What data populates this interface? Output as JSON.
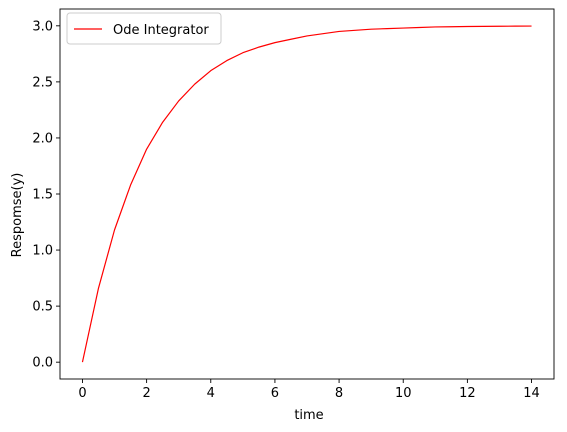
{
  "chart_data": {
    "type": "line",
    "title": "",
    "xlabel": "time",
    "ylabel": "Respomse(y)",
    "xlim": [
      -0.7,
      14.7
    ],
    "ylim": [
      -0.15,
      3.15
    ],
    "xticks": [
      0,
      2,
      4,
      6,
      8,
      10,
      12,
      14
    ],
    "xtick_labels": [
      "0",
      "2",
      "4",
      "6",
      "8",
      "10",
      "12",
      "14"
    ],
    "yticks": [
      0.0,
      0.5,
      1.0,
      1.5,
      2.0,
      2.5,
      3.0
    ],
    "ytick_labels": [
      "0.0",
      "0.5",
      "1.0",
      "1.5",
      "2.0",
      "2.5",
      "3.0"
    ],
    "grid": false,
    "legend_position": "top-left",
    "series": [
      {
        "name": "Ode Integrator",
        "color": "#ff0000",
        "x": [
          0,
          0.5,
          1,
          1.5,
          2,
          2.5,
          3,
          3.5,
          4,
          4.5,
          5,
          5.5,
          6,
          6.5,
          7,
          7.5,
          8,
          8.5,
          9,
          9.5,
          10,
          10.5,
          11,
          11.5,
          12,
          12.5,
          13,
          13.5,
          14
        ],
        "y": [
          0.0,
          0.66,
          1.18,
          1.58,
          1.9,
          2.14,
          2.33,
          2.48,
          2.6,
          2.69,
          2.76,
          2.81,
          2.85,
          2.88,
          2.91,
          2.93,
          2.95,
          2.96,
          2.97,
          2.975,
          2.98,
          2.985,
          2.99,
          2.992,
          2.994,
          2.995,
          2.996,
          2.997,
          2.998
        ]
      }
    ]
  }
}
